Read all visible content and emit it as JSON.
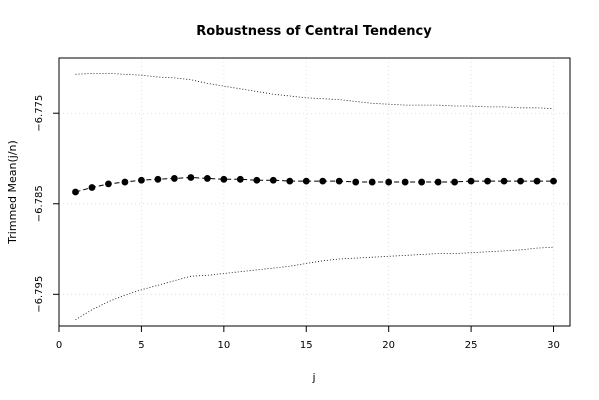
{
  "chart_data": {
    "type": "line",
    "title": "Robustness of Central Tendency",
    "xlabel": "j",
    "ylabel": "Trimmed Mean(j/n)",
    "xlim": [
      0,
      31
    ],
    "ylim": [
      -6.7985,
      -6.7689
    ],
    "x_ticks": [
      0,
      5,
      10,
      15,
      20,
      25,
      30
    ],
    "x_tick_labels": [
      "0",
      "5",
      "10",
      "15",
      "20",
      "25",
      "30"
    ],
    "y_ticks": [
      -6.775,
      -6.785,
      -6.795
    ],
    "y_tick_labels": [
      "−6.775",
      "−6.785",
      "−6.795"
    ],
    "grid": true,
    "x": [
      1,
      2,
      3,
      4,
      5,
      6,
      7,
      8,
      9,
      10,
      11,
      12,
      13,
      14,
      15,
      16,
      17,
      18,
      19,
      20,
      21,
      22,
      23,
      24,
      25,
      26,
      27,
      28,
      29,
      30
    ],
    "series": [
      {
        "role": "trimmed-mean",
        "values": [
          -6.7837,
          -6.7832,
          -6.7828,
          -6.7826,
          -6.7824,
          -6.7823,
          -6.7822,
          -6.7821,
          -6.7822,
          -6.7823,
          -6.7823,
          -6.7824,
          -6.7824,
          -6.7825,
          -6.7825,
          -6.7825,
          -6.7825,
          -6.7826,
          -6.7826,
          -6.7826,
          -6.7826,
          -6.7826,
          -6.7826,
          -6.7826,
          -6.7825,
          -6.7825,
          -6.7825,
          -6.7825,
          -6.7825,
          -6.7825
        ]
      },
      {
        "role": "upper-bound",
        "values": [
          -6.7707,
          -6.7706,
          -6.7706,
          -6.7707,
          -6.7708,
          -6.771,
          -6.7711,
          -6.7713,
          -6.7717,
          -6.772,
          -6.7723,
          -6.7726,
          -6.7729,
          -6.7731,
          -6.7733,
          -6.7734,
          -6.7735,
          -6.7737,
          -6.7739,
          -6.774,
          -6.7741,
          -6.7741,
          -6.7741,
          -6.7742,
          -6.7742,
          -6.7743,
          -6.7743,
          -6.7744,
          -6.7744,
          -6.7745
        ]
      },
      {
        "role": "lower-bound",
        "values": [
          -6.7978,
          -6.7967,
          -6.7958,
          -6.7951,
          -6.7945,
          -6.794,
          -6.7935,
          -6.793,
          -6.7929,
          -6.7927,
          -6.7925,
          -6.7923,
          -6.7921,
          -6.7919,
          -6.7916,
          -6.7913,
          -6.7911,
          -6.791,
          -6.7909,
          -6.7908,
          -6.7907,
          -6.7906,
          -6.7905,
          -6.7905,
          -6.7904,
          -6.7903,
          -6.7902,
          -6.7901,
          -6.7899,
          -6.7898
        ]
      }
    ]
  }
}
